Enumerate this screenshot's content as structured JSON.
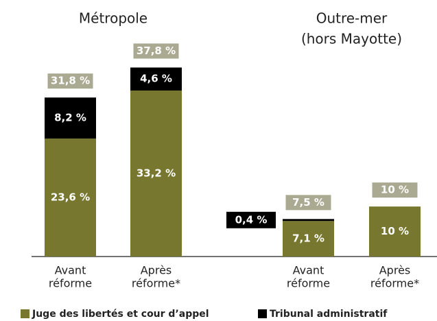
{
  "chart_data": {
    "type": "stacked-bar",
    "group_titles": [
      [
        "Métropole"
      ],
      [
        "Outre-mer",
        "(hors Mayotte)"
      ]
    ],
    "groups": [
      [
        0,
        1
      ],
      [
        2,
        3
      ]
    ],
    "categories": [
      [
        "Avant",
        "réforme"
      ],
      [
        "Après",
        "réforme*"
      ],
      [
        "Avant",
        "réforme"
      ],
      [
        "Après",
        "réforme*"
      ]
    ],
    "series": [
      {
        "name": "Juge des libertés et cour d’appel",
        "color": "#77772f",
        "values": [
          23.6,
          33.2,
          7.1,
          10
        ],
        "value_labels": [
          "23,6 %",
          "33,2 %",
          "7,1 %",
          "10 %"
        ]
      },
      {
        "name": "Tribunal administratif",
        "color": "#000000",
        "values": [
          8.2,
          4.6,
          0.4,
          null
        ],
        "value_labels": [
          "8,2 %",
          "4,6 %",
          "0,4 %",
          null
        ]
      }
    ],
    "totals": [
      31.8,
      37.8,
      7.5,
      10
    ],
    "totals_labels": [
      "31,8 %",
      "37,8 %",
      "7,5 %",
      "10 %"
    ],
    "totals_color": "#aaa991",
    "ylim": [
      0,
      50
    ]
  }
}
